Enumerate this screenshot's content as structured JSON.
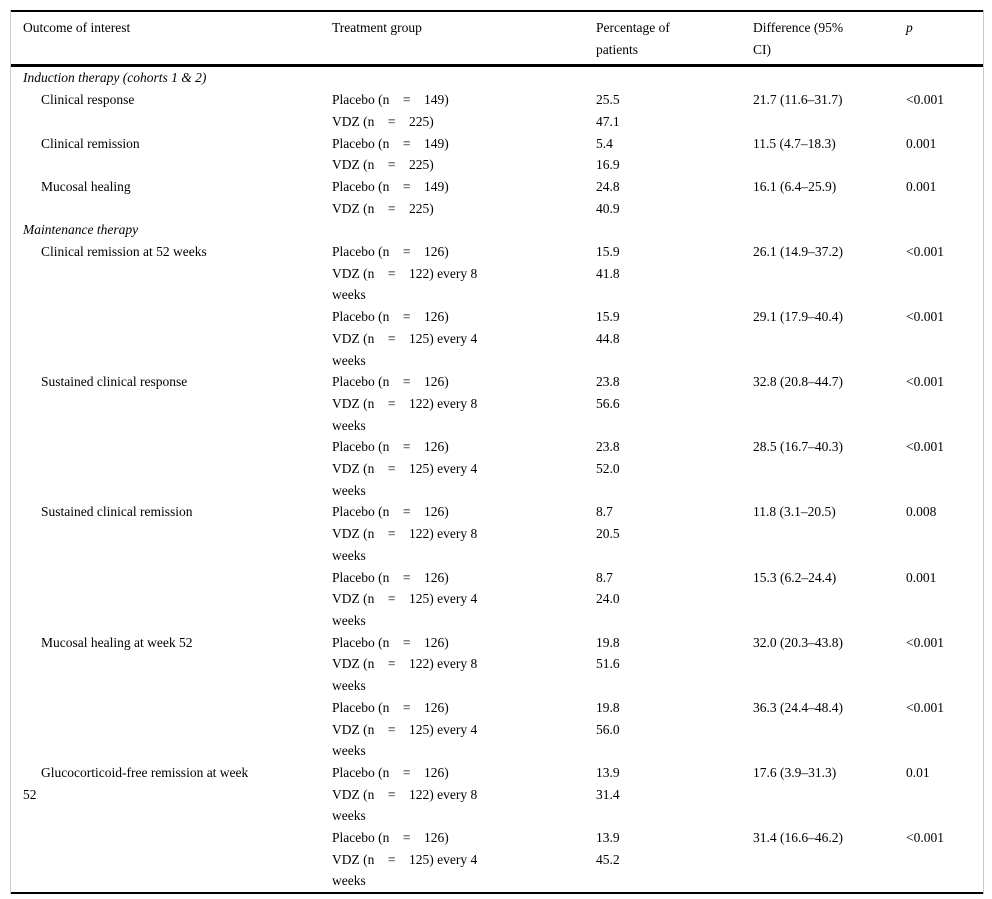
{
  "colors": {
    "text": "#000000",
    "rule": "#000000",
    "frame_border": "#c9c9c9",
    "background": "#ffffff"
  },
  "table": {
    "headers": [
      "Outcome of interest",
      "Treatment group",
      "Percentage of\npatients",
      "Difference (95%\nCI)",
      "p"
    ],
    "sections": [
      {
        "title": "Induction therapy (cohorts 1 & 2)",
        "groups": [
          {
            "outcome": "Clinical response",
            "rows": [
              {
                "treatment": "Placebo (n    =    149)",
                "pct": "25.5",
                "diff": "21.7 (11.6–31.7)",
                "p": "<0.001"
              },
              {
                "treatment": "VDZ (n    =    225)",
                "pct": "47.1",
                "diff": "",
                "p": ""
              }
            ]
          },
          {
            "outcome": "Clinical remission",
            "rows": [
              {
                "treatment": "Placebo (n    =    149)",
                "pct": "5.4",
                "diff": "11.5 (4.7–18.3)",
                "p": "0.001"
              },
              {
                "treatment": "VDZ (n    =    225)",
                "pct": "16.9",
                "diff": "",
                "p": ""
              }
            ]
          },
          {
            "outcome": "Mucosal healing",
            "rows": [
              {
                "treatment": "Placebo (n    =    149)",
                "pct": "24.8",
                "diff": "16.1 (6.4–25.9)",
                "p": "0.001"
              },
              {
                "treatment": "VDZ (n    =    225)",
                "pct": "40.9",
                "diff": "",
                "p": ""
              }
            ]
          }
        ]
      },
      {
        "title": "Maintenance therapy",
        "groups": [
          {
            "outcome": "Clinical remission at 52 weeks",
            "rows": [
              {
                "treatment": "Placebo (n    =    126)",
                "pct": "15.9",
                "diff": "26.1 (14.9–37.2)",
                "p": "<0.001"
              },
              {
                "treatment": "VDZ (n    =    122) every 8\nweeks",
                "pct": "41.8",
                "diff": "",
                "p": ""
              },
              {
                "treatment": "Placebo (n    =    126)",
                "pct": "15.9",
                "diff": "29.1 (17.9–40.4)",
                "p": "<0.001"
              },
              {
                "treatment": "VDZ (n    =    125) every 4\nweeks",
                "pct": "44.8",
                "diff": "",
                "p": ""
              }
            ]
          },
          {
            "outcome": "Sustained clinical response",
            "rows": [
              {
                "treatment": "Placebo (n    =    126)",
                "pct": "23.8",
                "diff": "32.8 (20.8–44.7)",
                "p": "<0.001"
              },
              {
                "treatment": "VDZ (n    =    122) every 8\nweeks",
                "pct": "56.6",
                "diff": "",
                "p": ""
              },
              {
                "treatment": "Placebo (n    =    126)",
                "pct": "23.8",
                "diff": "28.5 (16.7–40.3)",
                "p": "<0.001"
              },
              {
                "treatment": "VDZ (n    =    125) every 4\nweeks",
                "pct": "52.0",
                "diff": "",
                "p": ""
              }
            ]
          },
          {
            "outcome": "Sustained clinical remission",
            "rows": [
              {
                "treatment": "Placebo (n    =    126)",
                "pct": "8.7",
                "diff": "11.8 (3.1–20.5)",
                "p": "0.008"
              },
              {
                "treatment": "VDZ (n    =    122) every 8\nweeks",
                "pct": "20.5",
                "diff": "",
                "p": ""
              },
              {
                "treatment": "Placebo (n    =    126)",
                "pct": "8.7",
                "diff": "15.3 (6.2–24.4)",
                "p": "0.001"
              },
              {
                "treatment": "VDZ (n    =    125) every 4\nweeks",
                "pct": "24.0",
                "diff": "",
                "p": ""
              }
            ]
          },
          {
            "outcome": "Mucosal healing at week 52",
            "rows": [
              {
                "treatment": "Placebo (n    =    126)",
                "pct": "19.8",
                "diff": "32.0 (20.3–43.8)",
                "p": "<0.001"
              },
              {
                "treatment": "VDZ (n    =    122) every 8\nweeks",
                "pct": "51.6",
                "diff": "",
                "p": ""
              },
              {
                "treatment": "Placebo (n    =    126)",
                "pct": "19.8",
                "diff": "36.3 (24.4–48.4)",
                "p": "<0.001"
              },
              {
                "treatment": "VDZ (n    =    125) every 4\nweeks",
                "pct": "56.0",
                "diff": "",
                "p": ""
              }
            ]
          },
          {
            "outcome": "Glucocorticoid-free remission at week\n52",
            "rows": [
              {
                "treatment": "Placebo (n    =    126)",
                "pct": "13.9",
                "diff": "17.6 (3.9–31.3)",
                "p": "0.01"
              },
              {
                "treatment": "VDZ (n    =    122) every 8\nweeks",
                "pct": "31.4",
                "diff": "",
                "p": ""
              },
              {
                "treatment": "Placebo (n    =    126)",
                "pct": "13.9",
                "diff": "31.4 (16.6–46.2)",
                "p": "<0.001"
              },
              {
                "treatment": "VDZ (n    =    125) every 4\nweeks",
                "pct": "45.2",
                "diff": "",
                "p": ""
              }
            ]
          }
        ]
      }
    ]
  }
}
